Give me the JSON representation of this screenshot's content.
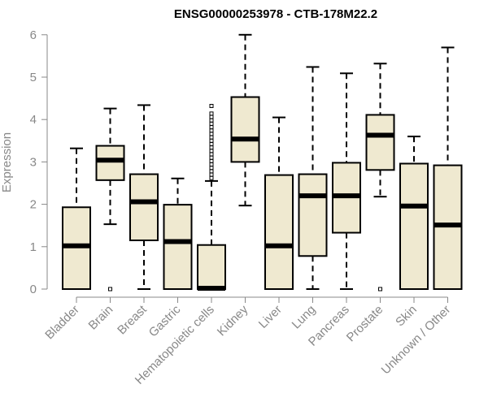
{
  "chart_data": {
    "type": "boxplot",
    "title": "ENSG00000253978 - CTB-178M22.2",
    "xlabel": "",
    "ylabel": "Expression",
    "ylim": [
      0,
      6
    ],
    "yticks": [
      0,
      1,
      2,
      3,
      4,
      5,
      6
    ],
    "colors": {
      "box_fill": "#efe9d0",
      "stroke": "#000000",
      "axis": "#888888"
    },
    "categories": [
      "Bladder",
      "Brain",
      "Breast",
      "Gastric",
      "Hematopoietic cells",
      "Kidney",
      "Liver",
      "Lung",
      "Pancreas",
      "Prostate",
      "Skin",
      "Unknown / Other"
    ],
    "boxes": [
      {
        "category": "Bladder",
        "whisker_low": 0,
        "q1": 0,
        "median": 1.02,
        "q3": 1.93,
        "whisker_high": 3.32,
        "outliers": []
      },
      {
        "category": "Brain",
        "whisker_low": 1.53,
        "q1": 2.57,
        "median": 3.04,
        "q3": 3.38,
        "whisker_high": 4.26,
        "outliers": [
          0.0
        ]
      },
      {
        "category": "Breast",
        "whisker_low": 0,
        "q1": 1.15,
        "median": 2.06,
        "q3": 2.71,
        "whisker_high": 4.34,
        "outliers": []
      },
      {
        "category": "Gastric",
        "whisker_low": 0,
        "q1": 0,
        "median": 1.12,
        "q3": 1.99,
        "whisker_high": 2.61,
        "outliers": []
      },
      {
        "category": "Hematopoietic cells",
        "whisker_low": 0,
        "q1": 0,
        "median": 0.02,
        "q3": 1.04,
        "whisker_high": 2.55,
        "outliers": [
          2.62,
          2.7,
          2.78,
          2.86,
          2.94,
          3.02,
          3.1,
          3.18,
          3.26,
          3.34,
          3.42,
          3.5,
          3.58,
          3.66,
          3.74,
          3.82,
          3.9,
          3.98,
          4.06,
          4.14,
          4.32
        ]
      },
      {
        "category": "Kidney",
        "whisker_low": 1.97,
        "q1": 3.0,
        "median": 3.54,
        "q3": 4.53,
        "whisker_high": 6.0,
        "outliers": []
      },
      {
        "category": "Liver",
        "whisker_low": 0,
        "q1": 0,
        "median": 1.02,
        "q3": 2.69,
        "whisker_high": 4.05,
        "outliers": []
      },
      {
        "category": "Lung",
        "whisker_low": 0,
        "q1": 0.78,
        "median": 2.2,
        "q3": 2.71,
        "whisker_high": 5.24,
        "outliers": []
      },
      {
        "category": "Pancreas",
        "whisker_low": 0,
        "q1": 1.33,
        "median": 2.2,
        "q3": 2.98,
        "whisker_high": 5.09,
        "outliers": []
      },
      {
        "category": "Prostate",
        "whisker_low": 2.18,
        "q1": 2.81,
        "median": 3.63,
        "q3": 4.11,
        "whisker_high": 5.32,
        "outliers": [
          0.0
        ]
      },
      {
        "category": "Skin",
        "whisker_low": 0,
        "q1": 0,
        "median": 1.96,
        "q3": 2.96,
        "whisker_high": 3.6,
        "outliers": []
      },
      {
        "category": "Unknown / Other",
        "whisker_low": 0,
        "q1": 0,
        "median": 1.51,
        "q3": 2.92,
        "whisker_high": 5.7,
        "outliers": []
      }
    ]
  }
}
